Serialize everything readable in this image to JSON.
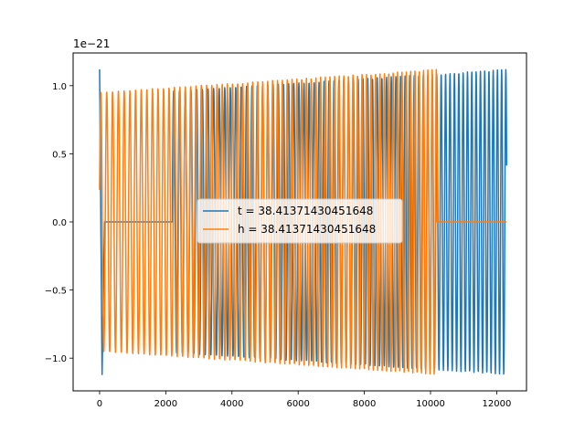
{
  "chart_data": {
    "type": "line",
    "title": "",
    "xlabel": "",
    "ylabel": "",
    "offset_text": "1e−21",
    "xlim": [
      -800,
      12900
    ],
    "ylim": [
      -1.24,
      1.24
    ],
    "x_ticks": [
      0,
      2000,
      4000,
      6000,
      8000,
      10000,
      12000
    ],
    "x_tick_labels": [
      "0",
      "2000",
      "4000",
      "6000",
      "8000",
      "10000",
      "12000"
    ],
    "y_ticks": [
      1.0,
      0.5,
      0.0,
      -0.5,
      -1.0
    ],
    "y_tick_labels": [
      "1.0",
      "0.5",
      "0.0",
      "−0.5",
      "−1.0"
    ],
    "grid": false,
    "legend_position": "center",
    "series": [
      {
        "name": "t = 38.41371430451648",
        "color": "#1f77b4",
        "segments": [
          {
            "kind": "decay",
            "x": [
              0,
              150
            ],
            "amplitude": [
              1.12,
              1.12
            ]
          },
          {
            "kind": "flat",
            "x": [
              150,
              2200
            ],
            "value": 0
          },
          {
            "kind": "oscillation",
            "x": [
              2200,
              12300
            ],
            "amplitude": [
              0.96,
              1.12
            ],
            "cycles": 57
          }
        ]
      },
      {
        "name": "h = 38.41371430451648",
        "color": "#ff7f0e",
        "segments": [
          {
            "kind": "oscillation",
            "x": [
              0,
              10200
            ],
            "amplitude": [
              0.95,
              1.12
            ],
            "cycles": 57
          },
          {
            "kind": "flat",
            "x": [
              10200,
              12300
            ],
            "value": 0
          }
        ]
      }
    ]
  }
}
